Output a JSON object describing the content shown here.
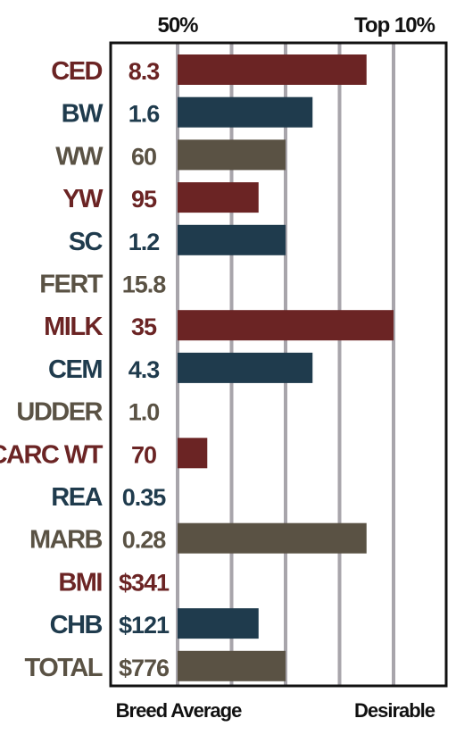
{
  "colors": {
    "maroon": "#6b2424",
    "navy": "#1f3b4d",
    "olive": "#5a5244",
    "gridline": "#a8a5ab",
    "frame": "#111111"
  },
  "chart_data": {
    "type": "bar",
    "orientation": "horizontal",
    "header_left": "50%",
    "header_right": "Top 10%",
    "footer_left": "Breed Average",
    "footer_right": "Desirable",
    "grid": true,
    "rows": [
      {
        "trait": "CED",
        "value_label": "8.3",
        "bar": 3.5,
        "color": "maroon"
      },
      {
        "trait": "BW",
        "value_label": "1.6",
        "bar": 2.5,
        "color": "navy"
      },
      {
        "trait": "WW",
        "value_label": "60",
        "bar": 2.0,
        "color": "olive"
      },
      {
        "trait": "YW",
        "value_label": "95",
        "bar": 1.5,
        "color": "maroon"
      },
      {
        "trait": "SC",
        "value_label": "1.2",
        "bar": 2.0,
        "color": "navy"
      },
      {
        "trait": "FERT",
        "value_label": "15.8",
        "bar": 0,
        "color": "olive"
      },
      {
        "trait": "MILK",
        "value_label": "35",
        "bar": 4.0,
        "color": "maroon"
      },
      {
        "trait": "CEM",
        "value_label": "4.3",
        "bar": 2.5,
        "color": "navy"
      },
      {
        "trait": "UDDER",
        "value_label": "1.0",
        "bar": 0,
        "color": "olive"
      },
      {
        "trait": "CARC WT",
        "value_label": "70",
        "bar": 0.55,
        "color": "maroon"
      },
      {
        "trait": "REA",
        "value_label": "0.35",
        "bar": 0,
        "color": "navy"
      },
      {
        "trait": "MARB",
        "value_label": "0.28",
        "bar": 3.5,
        "color": "olive"
      },
      {
        "trait": "BMI",
        "value_label": "$341",
        "bar": 0,
        "color": "maroon"
      },
      {
        "trait": "CHB",
        "value_label": "$121",
        "bar": 1.5,
        "color": "navy"
      },
      {
        "trait": "TOTAL",
        "value_label": "$776",
        "bar": 2.0,
        "color": "olive"
      }
    ],
    "scale": {
      "min": 0,
      "max": 5,
      "gridlines": [
        0,
        1,
        2,
        3,
        4
      ]
    }
  }
}
